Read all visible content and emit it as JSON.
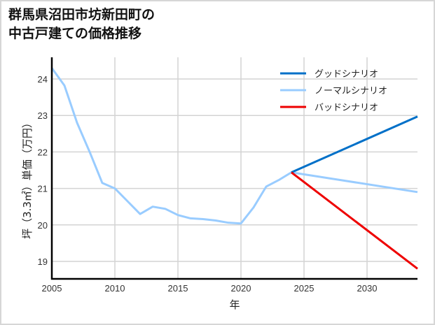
{
  "title": {
    "line1": "群馬県沼田市坊新田町の",
    "line2": "中古戸建ての価格推移"
  },
  "chart_data": {
    "type": "line",
    "title": "群馬県沼田市坊新田町の中古戸建ての価格推移",
    "xlabel": "年",
    "ylabel": "坪（3.3㎡）単価（万円）",
    "xlim": [
      2005,
      2034
    ],
    "ylim": [
      18.55,
      24.6
    ],
    "xticks": [
      2005,
      2010,
      2015,
      2020,
      2025,
      2030
    ],
    "yticks": [
      19,
      20,
      21,
      22,
      23,
      24
    ],
    "grid": true,
    "legend_position": "upper right",
    "series": [
      {
        "name": "グッドシナリオ",
        "color": "#0070c8",
        "x": [
          2024,
          2034
        ],
        "values": [
          21.44,
          22.97
        ]
      },
      {
        "name": "ノーマルシナリオ",
        "color": "#99ccff",
        "x": [
          2005,
          2006,
          2007,
          2008,
          2009,
          2010,
          2011,
          2012,
          2013,
          2014,
          2015,
          2016,
          2017,
          2018,
          2019,
          2020,
          2021,
          2022,
          2023,
          2024,
          2034
        ],
        "values": [
          24.3,
          23.82,
          22.8,
          22.0,
          21.15,
          21.0,
          20.65,
          20.3,
          20.5,
          20.44,
          20.27,
          20.18,
          20.16,
          20.12,
          20.06,
          20.04,
          20.48,
          21.05,
          21.23,
          21.44,
          20.9
        ]
      },
      {
        "name": "バッドシナリオ",
        "color": "#ee0000",
        "x": [
          2024,
          2034
        ],
        "values": [
          21.44,
          18.8
        ]
      }
    ]
  }
}
